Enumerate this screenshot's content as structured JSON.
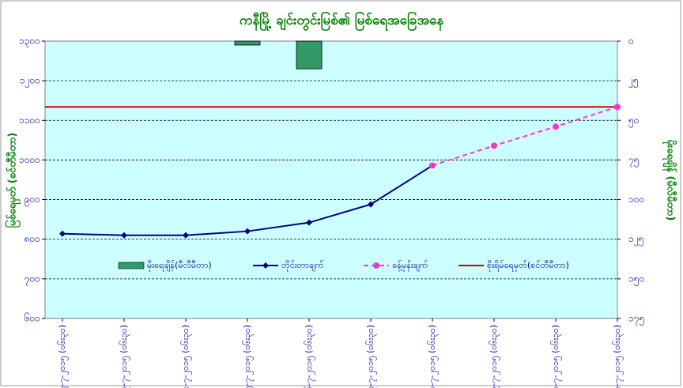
{
  "chart_data": {
    "type": "line",
    "title": "ကနီမြို့ ချင်းတွင်းမြစ်၏ မြစ်ရေအခြေအနေ",
    "ylabel": "မြစ်ရေမှတ် (စင်တီမီတာ)",
    "y2label": "မိုးရေချိန် (မီလီမီတာ)",
    "categories": [
      "၂၂-၇-၂၀၁၅ (၀၆း၃၀)",
      "၂၃-၇-၂၀၁၅ (၀၆း၃၀)",
      "၂၄-၇-၂၀၁၅ (၀၆း၃၀)",
      "၂၅-၇-၂၀၁၅ (၀၆း၃၀)",
      "၂၆-၇-၂၀၁၅ (၀၆း၃၀)",
      "၂၇-၇-၂၀၁၅ (၀၆း၃၀)",
      "၂၈-၇-၂၀၁၅ (၀၆း၃၀)",
      "၂၉-၇-၂၀၁၅ (၀၆း၃၀)",
      "၃၀-၇-၂၀၁၅ (၀၆း၃၀)",
      "၃၁-၇-၂၀၁၅ (၀၆း၃၀)"
    ],
    "series": [
      {
        "name": "မိုးရေချိန်(မီလီမီတာ)",
        "type": "bar",
        "axis": "y2",
        "color": "#339966",
        "values": [
          null,
          null,
          null,
          2.5,
          17.5,
          null,
          null,
          null,
          null,
          null
        ]
      },
      {
        "name": "တိုင်းတာချက်",
        "type": "line",
        "color": "#000080",
        "marker": "diamond",
        "dashed": false,
        "values": [
          814,
          810,
          810,
          820,
          842,
          888,
          986,
          null,
          null,
          null
        ]
      },
      {
        "name": "ခန့်မှန်းချက်",
        "type": "line",
        "color": "#ff33cc",
        "marker": "circle",
        "dashed": true,
        "values": [
          null,
          null,
          null,
          null,
          null,
          null,
          986,
          1036,
          1084,
          1134
        ]
      }
    ],
    "reference_line": {
      "name": "စိုးရိမ်ရေမှတ်(စင်တီမီတာ)",
      "value": 1134,
      "color": "#cc0000"
    },
    "ylim": [
      600,
      1300
    ],
    "yticks": [
      {
        "value": 600,
        "label": "၆၀၀"
      },
      {
        "value": 700,
        "label": "၇၀၀"
      },
      {
        "value": 800,
        "label": "၈၀၀"
      },
      {
        "value": 900,
        "label": "၉၀၀"
      },
      {
        "value": 1000,
        "label": "၁၀၀၀"
      },
      {
        "value": 1100,
        "label": "၁၁၀၀"
      },
      {
        "value": 1200,
        "label": "၁၂၀၀"
      },
      {
        "value": 1300,
        "label": "၁၃၀၀"
      }
    ],
    "y2lim": [
      0,
      175
    ],
    "y2_inverted": true,
    "y2ticks": [
      {
        "value": 0,
        "label": "၀"
      },
      {
        "value": 25,
        "label": "၂၅"
      },
      {
        "value": 50,
        "label": "၅၀"
      },
      {
        "value": 75,
        "label": "၇၅"
      },
      {
        "value": 100,
        "label": "၁၀၀"
      },
      {
        "value": 125,
        "label": "၁၂၅"
      },
      {
        "value": 150,
        "label": "၁၅၀"
      },
      {
        "value": 175,
        "label": "၁၇၅"
      }
    ],
    "grid": true,
    "legend": "bottom-inside"
  }
}
